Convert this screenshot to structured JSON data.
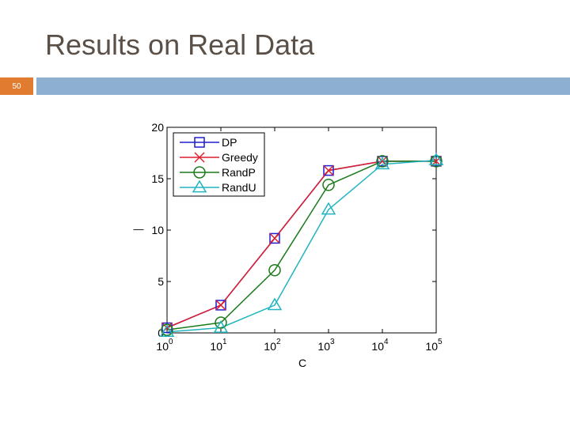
{
  "slide": {
    "title": "Results on Real Data",
    "number": "50"
  },
  "colors": {
    "title_bar": "#8eb0d0",
    "number_badge": "#e07b2f",
    "title_text": "#5a5048"
  },
  "chart_data": {
    "type": "line",
    "x_scale": "log",
    "x": [
      1,
      10,
      100,
      1000,
      10000,
      100000
    ],
    "xtick_labels": [
      {
        "base": "10",
        "exp": "0"
      },
      {
        "base": "10",
        "exp": "1"
      },
      {
        "base": "10",
        "exp": "2"
      },
      {
        "base": "10",
        "exp": "3"
      },
      {
        "base": "10",
        "exp": "4"
      },
      {
        "base": "10",
        "exp": "5"
      }
    ],
    "yticks": [
      "0",
      "5",
      "10",
      "15",
      "20"
    ],
    "ylim": [
      0,
      20
    ],
    "xlabel": "C",
    "ylabel": "—",
    "grid": false,
    "legend_position": "top-left",
    "series": [
      {
        "name": "DP",
        "marker": "square",
        "color": "#1f1fd0",
        "values": [
          0.5,
          2.7,
          9.2,
          15.8,
          16.7,
          16.7
        ]
      },
      {
        "name": "Greedy",
        "marker": "x",
        "color": "#dd1f2f",
        "values": [
          0.5,
          2.7,
          9.2,
          15.8,
          16.7,
          16.7
        ]
      },
      {
        "name": "RandP",
        "marker": "circle",
        "color": "#1a7a1a",
        "values": [
          0.3,
          1.0,
          6.1,
          14.4,
          16.7,
          16.7
        ]
      },
      {
        "name": "RandU",
        "marker": "triangle",
        "color": "#22b5c0",
        "values": [
          0.1,
          0.5,
          2.7,
          12.0,
          16.4,
          16.8
        ]
      }
    ]
  }
}
